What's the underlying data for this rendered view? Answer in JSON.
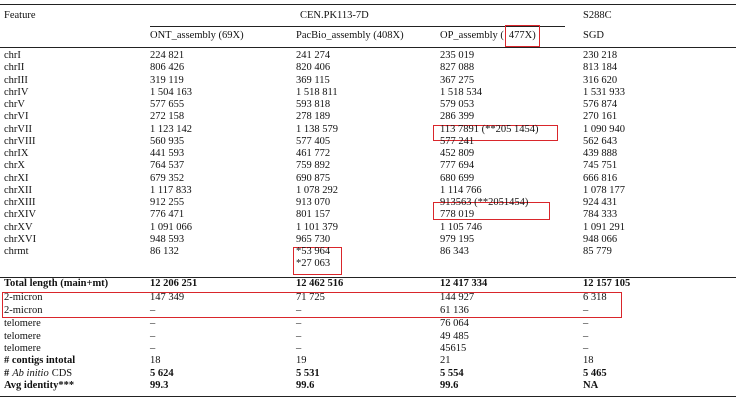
{
  "header": {
    "feature": "Feature",
    "group": "CEN.PK113-7D",
    "reference": "S288C",
    "columns": [
      "ONT_assembly (69X)",
      "PacBio_assembly (408X)",
      {
        "text": "OP_assembly (",
        "boxed": "477X)"
      },
      "SGD"
    ]
  },
  "rows": [
    {
      "label": "chrI",
      "cells": [
        "224 821",
        "241 274",
        "235 019",
        "230 218"
      ]
    },
    {
      "label": "chrII",
      "cells": [
        "806 426",
        "820 406",
        "827 088",
        "813 184"
      ]
    },
    {
      "label": "chrIII",
      "cells": [
        "319 119",
        "369 115",
        "367 275",
        "316 620"
      ]
    },
    {
      "label": "chrIV",
      "cells": [
        "1 504 163",
        "1 518 811",
        "1 518 534",
        "1 531 933"
      ]
    },
    {
      "label": "chrV",
      "cells": [
        "577 655",
        "593 818",
        "579 053",
        "576 874"
      ]
    },
    {
      "label": "chrVI",
      "cells": [
        "272 158",
        "278 189",
        "286 399",
        "270 161"
      ]
    },
    {
      "label": "chrVII",
      "cells": [
        "1 123 142",
        "1 138 579",
        "113 7891 (**205 1454)",
        "1 090 940"
      ]
    },
    {
      "label": "chrVIII",
      "cells": [
        "560 935",
        "577 405",
        "577 241",
        "562 643"
      ]
    },
    {
      "label": "chrIX",
      "cells": [
        "441 593",
        "461 772",
        "452 809",
        "439 888"
      ]
    },
    {
      "label": "chrX",
      "cells": [
        "764 537",
        "759 892",
        "777 694",
        "745 751"
      ]
    },
    {
      "label": "chrXI",
      "cells": [
        "679 352",
        "690 875",
        "680 699",
        "666 816"
      ]
    },
    {
      "label": "chrXII",
      "cells": [
        "1 117 833",
        "1 078 292",
        "1 114 766",
        "1 078 177"
      ]
    },
    {
      "label": "chrXIII",
      "cells": [
        "912 255",
        "913 070",
        "913563 (**2051454)",
        "924 431"
      ]
    },
    {
      "label": "chrXIV",
      "cells": [
        "776 471",
        "801 157",
        "778 019",
        "784 333"
      ]
    },
    {
      "label": "chrXV",
      "cells": [
        "1 091 066",
        "1 101 379",
        "1 105 746",
        "1 091 291"
      ]
    },
    {
      "label": "chrXVI",
      "cells": [
        "948 593",
        "965 730",
        "979 195",
        "948 066"
      ]
    },
    {
      "label": "chrmt",
      "cells": [
        "86 132",
        [
          "*53 964",
          "*27 063"
        ],
        "86 343",
        "85 779"
      ]
    },
    {
      "label": "Total length (main+mt)",
      "cells": [
        "12 206 251",
        "12 462 516",
        "12 417 334",
        "12 157 105"
      ]
    },
    {
      "label": "2-micron",
      "cells": [
        "147 349",
        "71 725",
        "144 927",
        "6 318"
      ]
    },
    {
      "label": "2-micron",
      "cells": [
        "–",
        "–",
        "61 136",
        "–"
      ]
    },
    {
      "label": "telomere",
      "cells": [
        "–",
        "–",
        "76 064",
        "–"
      ]
    },
    {
      "label": "telomere",
      "cells": [
        "–",
        "–",
        "49 485",
        "–"
      ]
    },
    {
      "label": "telomere",
      "cells": [
        "–",
        "–",
        "45615",
        "–"
      ]
    },
    {
      "label": "# contigs intotal",
      "cells": [
        "18",
        "19",
        "21",
        "18"
      ]
    },
    {
      "label": [
        "#",
        "Ab initio",
        "CDS"
      ],
      "cells": [
        "5 624",
        "5 531",
        "5 554",
        "5 465"
      ]
    },
    {
      "label": "Avg identity***",
      "cells": [
        "99.3",
        "99.6",
        "99.6",
        "NA"
      ]
    }
  ]
}
